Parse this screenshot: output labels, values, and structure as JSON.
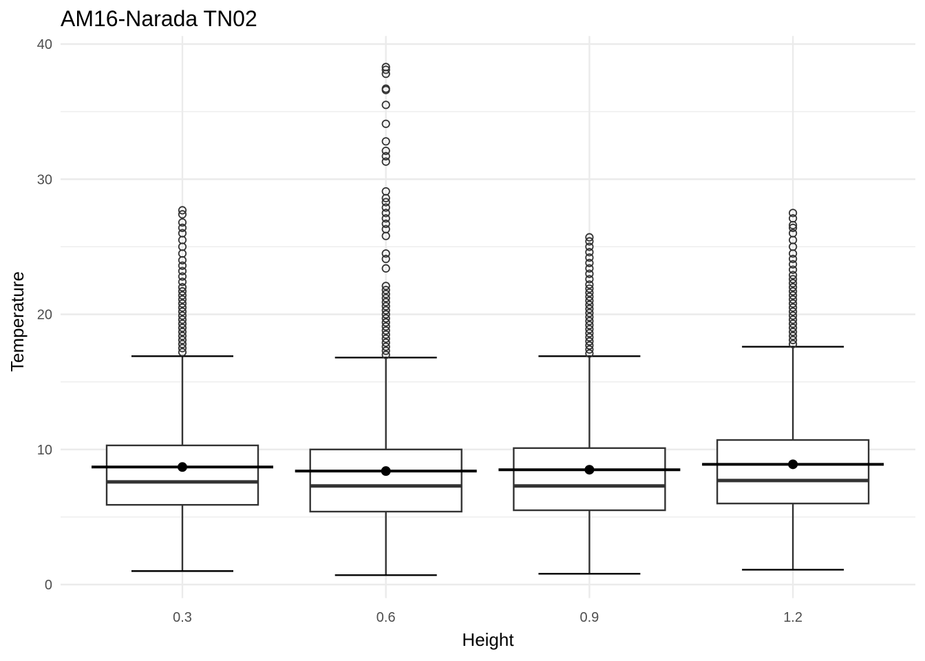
{
  "chart_data": {
    "type": "box",
    "title": "AM16-Narada TN02",
    "xlabel": "Height",
    "ylabel": "Temperature",
    "categories": [
      "0.3",
      "0.6",
      "0.9",
      "1.2"
    ],
    "y_ticks": [
      0,
      10,
      20,
      30,
      40
    ],
    "ylim": [
      -1.0,
      40.5
    ],
    "grid": true,
    "boxes": [
      {
        "category": "0.3",
        "whisker_low": 1.0,
        "q1": 5.9,
        "median": 7.6,
        "q3": 10.3,
        "whisker_high": 16.9,
        "mean": 8.7,
        "outliers": [
          17.2,
          17.5,
          17.8,
          18.1,
          18.4,
          18.7,
          19.0,
          19.3,
          19.6,
          19.9,
          20.2,
          20.5,
          20.8,
          21.1,
          21.4,
          21.7,
          22.0,
          22.4,
          22.8,
          23.2,
          23.6,
          24.0,
          24.5,
          25.0,
          25.5,
          26.0,
          26.4,
          26.8,
          27.4,
          27.7
        ]
      },
      {
        "category": "0.6",
        "whisker_low": 0.7,
        "q1": 5.4,
        "median": 7.3,
        "q3": 10.0,
        "whisker_high": 16.8,
        "mean": 8.4,
        "outliers": [
          17.0,
          17.3,
          17.6,
          17.9,
          18.2,
          18.5,
          18.8,
          19.1,
          19.4,
          19.7,
          20.0,
          20.3,
          20.6,
          20.9,
          21.2,
          21.5,
          21.8,
          22.1,
          23.4,
          24.1,
          24.5,
          25.8,
          26.3,
          26.7,
          27.1,
          27.5,
          27.9,
          28.3,
          28.6,
          29.1,
          31.3,
          31.7,
          32.1,
          32.8,
          34.1,
          35.5,
          36.6,
          36.7,
          37.8,
          38.1,
          38.3
        ]
      },
      {
        "category": "0.9",
        "whisker_low": 0.8,
        "q1": 5.5,
        "median": 7.3,
        "q3": 10.1,
        "whisker_high": 16.9,
        "mean": 8.5,
        "outliers": [
          17.1,
          17.4,
          17.7,
          18.0,
          18.3,
          18.6,
          18.9,
          19.2,
          19.5,
          19.8,
          20.1,
          20.4,
          20.7,
          21.0,
          21.3,
          21.6,
          21.9,
          22.2,
          22.6,
          23.0,
          23.4,
          23.8,
          24.2,
          24.6,
          25.0,
          25.4,
          25.7
        ]
      },
      {
        "category": "1.2",
        "whisker_low": 1.1,
        "q1": 6.0,
        "median": 7.7,
        "q3": 10.7,
        "whisker_high": 17.6,
        "mean": 8.9,
        "outliers": [
          17.8,
          18.1,
          18.4,
          18.7,
          19.0,
          19.3,
          19.6,
          19.9,
          20.2,
          20.5,
          20.8,
          21.1,
          21.4,
          21.7,
          22.0,
          22.3,
          22.6,
          22.9,
          23.3,
          23.7,
          24.1,
          24.5,
          25.0,
          25.5,
          26.0,
          26.4,
          26.6,
          27.1,
          27.5
        ]
      }
    ],
    "colors": {
      "grid": "#ebebeb",
      "box": "#333333",
      "mean_line": "#000000",
      "tick_text": "#4d4d4d",
      "text": "#000000"
    }
  }
}
